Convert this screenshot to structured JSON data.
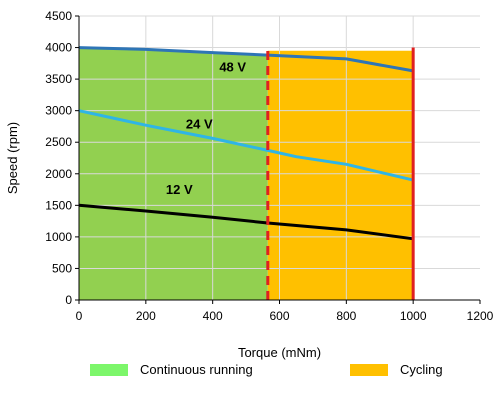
{
  "chart_data": {
    "type": "line",
    "xlabel": "Torque (mNm)",
    "ylabel": "Speed (rpm)",
    "xlim": [
      0,
      1200
    ],
    "ylim": [
      0,
      4500
    ],
    "xticks": [
      "0",
      "200",
      "400",
      "600",
      "800",
      "1000",
      "1200"
    ],
    "yticks": [
      "0",
      "500",
      "1000",
      "1500",
      "2000",
      "2500",
      "3000",
      "3500",
      "4000",
      "4500"
    ],
    "grid": true,
    "series": [
      {
        "name": "48 V",
        "color": "#2e75b6",
        "x": [
          0,
          200,
          400,
          565,
          800,
          1000
        ],
        "y": [
          4000,
          3970,
          3920,
          3880,
          3820,
          3630
        ]
      },
      {
        "name": "24 V",
        "color": "#2fb5e6",
        "x": [
          0,
          200,
          400,
          565,
          650,
          800,
          1000
        ],
        "y": [
          3000,
          2770,
          2560,
          2370,
          2270,
          2150,
          1900
        ]
      },
      {
        "name": "12 V",
        "color": "#000000",
        "x": [
          0,
          200,
          400,
          565,
          800,
          1000
        ],
        "y": [
          1500,
          1410,
          1310,
          1220,
          1110,
          970
        ]
      }
    ],
    "regions": [
      {
        "name": "Continuous running",
        "color": "#92d050",
        "x_range": [
          0,
          565
        ],
        "upper_series": "48 V"
      },
      {
        "name": "Cycling",
        "color": "#ffc000",
        "x_range": [
          565,
          1000
        ],
        "top": 3950
      }
    ],
    "limit_lines": [
      {
        "x": 565,
        "color": "#e02020",
        "style": "dashed"
      },
      {
        "x": 1000,
        "color": "#e02020",
        "style": "solid"
      }
    ],
    "series_labels": [
      {
        "text": "48 V",
        "x": 460,
        "y": 3620
      },
      {
        "text": "24 V",
        "x": 360,
        "y": 2720
      },
      {
        "text": "12 V",
        "x": 300,
        "y": 1680
      }
    ],
    "legend": {
      "placement": "bottom",
      "items": [
        {
          "label": "Continuous running",
          "color": "#7cf66a"
        },
        {
          "label": "Cycling",
          "color": "#ffc000"
        }
      ]
    }
  }
}
